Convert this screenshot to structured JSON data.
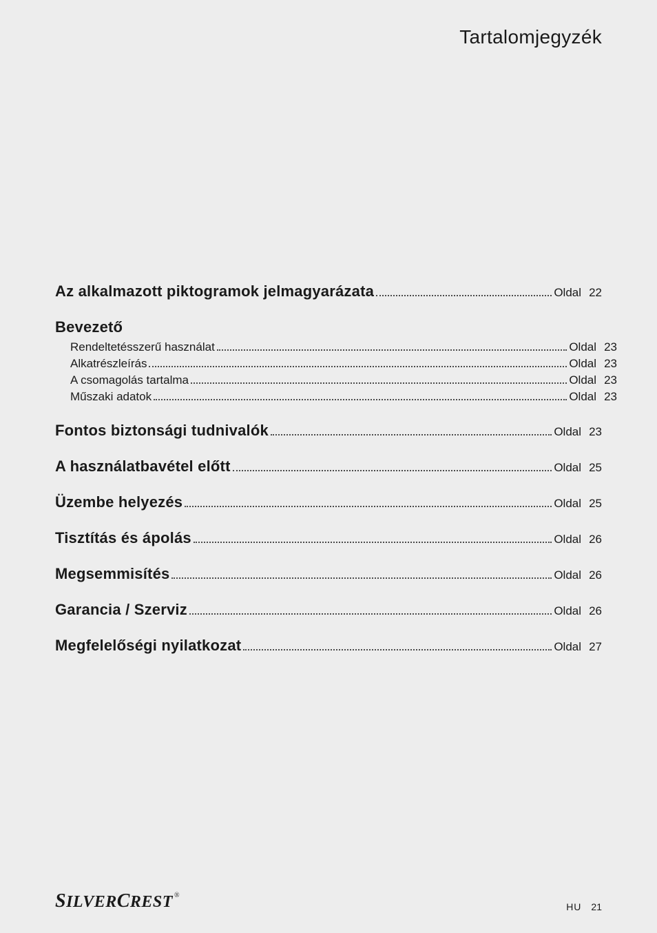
{
  "colors": {
    "background": "#ededed",
    "text": "#1a1a1a",
    "leader": "#4a4a4a"
  },
  "typography": {
    "header_fontsize": 28,
    "section_fontsize": 22,
    "sub_fontsize": 17,
    "footer_fontsize": 14,
    "brand_fontsize": 24
  },
  "header": {
    "title": "Tartalomjegyzék"
  },
  "page_label": "Oldal",
  "toc": [
    {
      "kind": "section",
      "title": "Az alkalmazott piktogramok jelmagyarázata",
      "page": 22
    },
    {
      "kind": "section_head",
      "title": "Bevezető"
    },
    {
      "kind": "sub",
      "title": "Rendeltetésszerű használat",
      "page": 23
    },
    {
      "kind": "sub",
      "title": "Alkatrészleírás",
      "page": 23
    },
    {
      "kind": "sub",
      "title": "A csomagolás tartalma",
      "page": 23
    },
    {
      "kind": "sub",
      "title": "Műszaki adatok",
      "page": 23
    },
    {
      "kind": "section",
      "title": "Fontos biztonsági tudnivalók",
      "page": 23
    },
    {
      "kind": "section",
      "title": "A használatbavétel előtt",
      "page": 25
    },
    {
      "kind": "section",
      "title": "Üzembe helyezés",
      "page": 25
    },
    {
      "kind": "section",
      "title": "Tisztítás és ápolás",
      "page": 26
    },
    {
      "kind": "section",
      "title": "Megsemmisítés",
      "page": 26
    },
    {
      "kind": "section",
      "title": "Garancia / Szerviz",
      "page": 26
    },
    {
      "kind": "section",
      "title": "Megfelelőségi nyilatkozat",
      "page": 27
    }
  ],
  "footer": {
    "brand_part1": "S",
    "brand_part2": "ILVER",
    "brand_part3": "C",
    "brand_part4": "REST",
    "reg": "®",
    "lang": "HU",
    "page_number": "21"
  }
}
